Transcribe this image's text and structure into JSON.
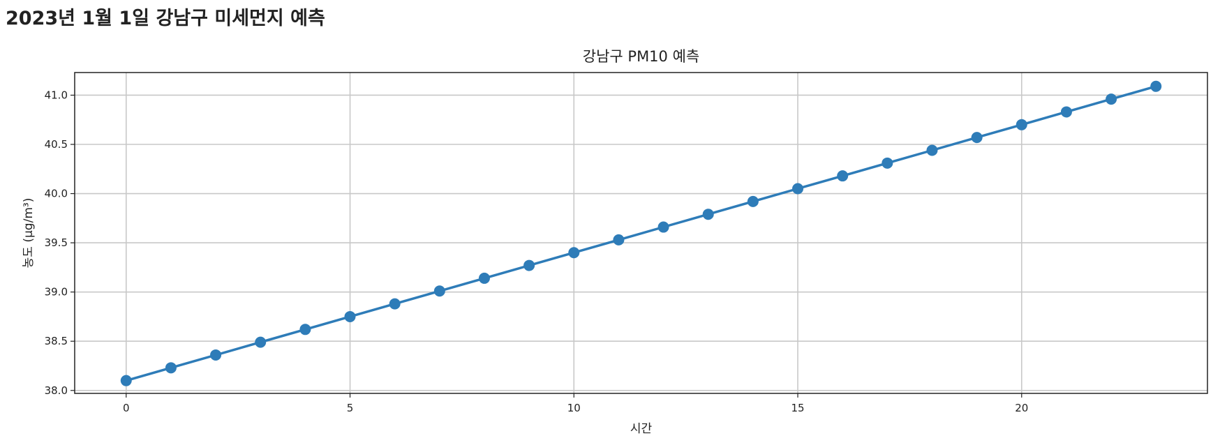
{
  "page": {
    "title": "2023년 1월 1일 강남구 미세먼지 예측"
  },
  "chart_data": {
    "type": "line",
    "title": "강남구 PM10 예측",
    "xlabel": "시간",
    "ylabel": "농도 (μg/m³)",
    "xlim": [
      -1.15,
      24.15
    ],
    "ylim": [
      37.97,
      41.23
    ],
    "xticks": [
      0,
      5,
      10,
      15,
      20
    ],
    "yticks": [
      38.0,
      38.5,
      39.0,
      39.5,
      40.0,
      40.5,
      41.0
    ],
    "ytick_labels": [
      "38.0",
      "38.5",
      "39.0",
      "39.5",
      "40.0",
      "40.5",
      "41.0"
    ],
    "grid": true,
    "color": "#2e7cb8",
    "x": [
      0,
      1,
      2,
      3,
      4,
      5,
      6,
      7,
      8,
      9,
      10,
      11,
      12,
      13,
      14,
      15,
      16,
      17,
      18,
      19,
      20,
      21,
      22,
      23
    ],
    "series": [
      {
        "values": [
          38.1,
          38.23,
          38.36,
          38.49,
          38.62,
          38.75,
          38.88,
          39.01,
          39.14,
          39.27,
          39.4,
          39.53,
          39.66,
          39.79,
          39.92,
          40.05,
          40.18,
          40.31,
          40.44,
          40.57,
          40.7,
          40.83,
          40.96,
          41.09
        ]
      }
    ]
  }
}
